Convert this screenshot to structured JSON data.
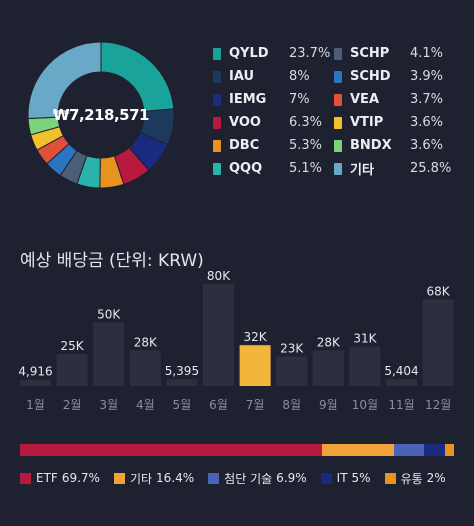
{
  "portfolio": {
    "total": "₩7,218,571",
    "holdings": [
      {
        "name": "QYLD",
        "pct": "23.7%",
        "value": 23.7,
        "color": "#1aa39a"
      },
      {
        "name": "IAU",
        "pct": "8%",
        "value": 8,
        "color": "#1d3a5c"
      },
      {
        "name": "IEMG",
        "pct": "7%",
        "value": 7,
        "color": "#1a2a80"
      },
      {
        "name": "VOO",
        "pct": "6.3%",
        "value": 6.3,
        "color": "#b8193f"
      },
      {
        "name": "DBC",
        "pct": "5.3%",
        "value": 5.3,
        "color": "#e8931f"
      },
      {
        "name": "QQQ",
        "pct": "5.1%",
        "value": 5.1,
        "color": "#2ab3a8"
      },
      {
        "name": "SCHP",
        "pct": "4.1%",
        "value": 4.1,
        "color": "#4a5e78"
      },
      {
        "name": "SCHD",
        "pct": "3.9%",
        "value": 3.9,
        "color": "#2a74c2"
      },
      {
        "name": "VEA",
        "pct": "3.7%",
        "value": 3.7,
        "color": "#e0503a"
      },
      {
        "name": "VTIP",
        "pct": "3.6%",
        "value": 3.6,
        "color": "#f2c12e"
      },
      {
        "name": "BNDX",
        "pct": "3.6%",
        "value": 3.6,
        "color": "#7dd37a"
      },
      {
        "name": "기타",
        "pct": "25.8%",
        "value": 25.8,
        "color": "#6aa8c8"
      }
    ]
  },
  "dividends": {
    "title": "예상 배당금 (단위: KRW)",
    "highlight_color": "#f2b73a",
    "bar_color": "#2b2f40"
  },
  "chart_data": {
    "type": "bar",
    "categories": [
      "1월",
      "2월",
      "3월",
      "4월",
      "5월",
      "6월",
      "7월",
      "8월",
      "9월",
      "10월",
      "11월",
      "12월"
    ],
    "values": [
      4916,
      25000,
      50000,
      28000,
      5395,
      80000,
      32000,
      23000,
      28000,
      31000,
      5404,
      68000
    ],
    "labels": [
      "4,916",
      "25K",
      "50K",
      "28K",
      "5,395",
      "80K",
      "32K",
      "23K",
      "28K",
      "31K",
      "5,404",
      "68K"
    ],
    "highlight_index": 6,
    "ylim": [
      0,
      80000
    ]
  },
  "sectors": [
    {
      "name": "ETF",
      "pct": "69.7%",
      "value": 69.7,
      "color": "#b8193f"
    },
    {
      "name": "기타",
      "pct": "16.4%",
      "value": 16.4,
      "color": "#f2a23a"
    },
    {
      "name": "첨단 기술",
      "pct": "6.9%",
      "value": 6.9,
      "color": "#4a62b8"
    },
    {
      "name": "IT",
      "pct": "5%",
      "value": 5,
      "color": "#1a2a80"
    },
    {
      "name": "유통",
      "pct": "2%",
      "value": 2,
      "color": "#e8931f"
    }
  ]
}
